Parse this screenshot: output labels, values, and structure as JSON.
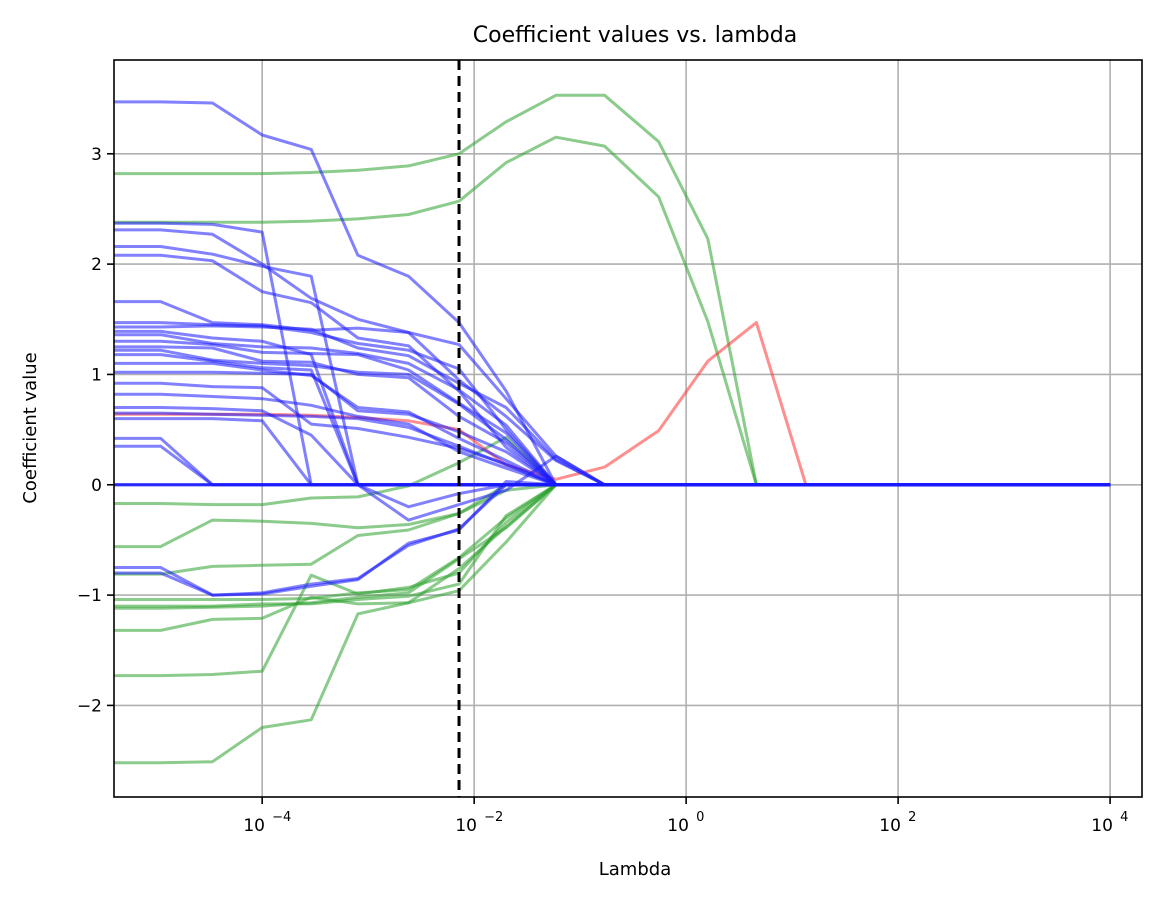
{
  "chart_data": {
    "type": "line",
    "title": "Coefficient values vs. lambda",
    "xlabel": "Lambda",
    "ylabel": "Coefficient value",
    "x_scale": "log",
    "xlim": [
      4e-06,
      20000
    ],
    "ylim": [
      -2.83,
      3.85
    ],
    "grid": true,
    "x_ticks": [
      {
        "value": 0.0001,
        "label": "10",
        "exp": "−4"
      },
      {
        "value": 0.01,
        "label": "10",
        "exp": "−2"
      },
      {
        "value": 1,
        "label": "10",
        "exp": "0"
      },
      {
        "value": 100,
        "label": "10",
        "exp": "2"
      },
      {
        "value": 10000,
        "label": "10",
        "exp": "4"
      }
    ],
    "y_ticks": [
      {
        "value": -2,
        "label": "−2"
      },
      {
        "value": -1,
        "label": "−1"
      },
      {
        "value": 0,
        "label": "0"
      },
      {
        "value": 1,
        "label": "1"
      },
      {
        "value": 2,
        "label": "2"
      },
      {
        "value": 3,
        "label": "3"
      }
    ],
    "vline": {
      "x": 0.0072,
      "style": "dashed",
      "color": "#000000"
    },
    "x": [
      4e-06,
      1.1e-05,
      3.4e-05,
      0.0001,
      0.00029,
      0.0008,
      0.0024,
      0.0072,
      0.02,
      0.059,
      0.17,
      0.55,
      1.6,
      4.6,
      13.5,
      40,
      120,
      350,
      1000,
      3000,
      10000
    ],
    "colors": {
      "green": "#2ca02c",
      "red": "#ff3333",
      "blue": "#1a1aff"
    },
    "series": [
      {
        "color": "green",
        "values": [
          2.82,
          2.82,
          2.82,
          2.82,
          2.83,
          2.85,
          2.89,
          3.0,
          3.29,
          3.53,
          3.53,
          3.11,
          2.23,
          0,
          0,
          0,
          0,
          0,
          0,
          0,
          0
        ]
      },
      {
        "color": "green",
        "values": [
          2.38,
          2.38,
          2.38,
          2.38,
          2.39,
          2.41,
          2.45,
          2.57,
          2.92,
          3.15,
          3.07,
          2.61,
          1.48,
          0,
          0,
          0,
          0,
          0,
          0,
          0,
          0
        ]
      },
      {
        "color": "green",
        "values": [
          -0.17,
          -0.17,
          -0.18,
          -0.18,
          -0.12,
          -0.11,
          -0.01,
          0.2,
          0.43,
          0,
          0,
          0,
          0,
          0,
          0,
          0,
          0,
          0,
          0,
          0,
          0
        ]
      },
      {
        "color": "green",
        "values": [
          -0.56,
          -0.56,
          -0.32,
          -0.33,
          -0.35,
          -0.39,
          -0.36,
          -0.26,
          -0.05,
          0,
          0,
          0,
          0,
          0,
          0,
          0,
          0,
          0,
          0,
          0,
          0
        ]
      },
      {
        "color": "green",
        "values": [
          -0.81,
          -0.81,
          -0.74,
          -0.73,
          -0.72,
          -0.46,
          -0.41,
          -0.26,
          0,
          0,
          0,
          0,
          0,
          0,
          0,
          0,
          0,
          0,
          0,
          0,
          0
        ]
      },
      {
        "color": "green",
        "values": [
          -1.04,
          -1.04,
          -1.04,
          -1.04,
          -1.03,
          -0.98,
          -0.95,
          -0.66,
          -0.3,
          0,
          0,
          0,
          0,
          0,
          0,
          0,
          0,
          0,
          0,
          0,
          0
        ]
      },
      {
        "color": "green",
        "values": [
          -1.12,
          -1.12,
          -1.11,
          -1.1,
          -1.07,
          -1.02,
          -0.98,
          -0.67,
          -0.39,
          0,
          0,
          0,
          0,
          0,
          0,
          0,
          0,
          0,
          0,
          0,
          0
        ]
      },
      {
        "color": "green",
        "values": [
          -1.1,
          -1.1,
          -1.1,
          -1.08,
          -1.08,
          -1.04,
          -1.01,
          -0.9,
          -0.28,
          0,
          0,
          0,
          0,
          0,
          0,
          0,
          0,
          0,
          0,
          0,
          0
        ]
      },
      {
        "color": "green",
        "values": [
          -1.32,
          -1.32,
          -1.22,
          -1.21,
          -1.02,
          -1.08,
          -1.07,
          -0.96,
          -0.52,
          0,
          0,
          0,
          0,
          0,
          0,
          0,
          0,
          0,
          0,
          0,
          0
        ]
      },
      {
        "color": "green",
        "values": [
          -1.73,
          -1.73,
          -1.72,
          -1.69,
          -0.82,
          -0.99,
          -0.93,
          -0.8,
          -0.34,
          0,
          0,
          0,
          0,
          0,
          0,
          0,
          0,
          0,
          0,
          0,
          0
        ]
      },
      {
        "color": "green",
        "values": [
          -2.52,
          -2.52,
          -2.51,
          -2.2,
          -2.13,
          -1.17,
          -1.07,
          -0.76,
          -0.38,
          0,
          0,
          0,
          0,
          0,
          0,
          0,
          0,
          0,
          0,
          0,
          0
        ]
      },
      {
        "color": "red",
        "values": [
          0.64,
          0.64,
          0.64,
          0.64,
          0.63,
          0.61,
          0.58,
          0.5,
          0.18,
          0.05,
          0.16,
          0.49,
          1.12,
          1.47,
          0,
          0,
          0,
          0,
          0,
          0,
          0
        ]
      },
      {
        "color": "blue",
        "values": [
          3.47,
          3.47,
          3.46,
          3.17,
          3.04,
          2.08,
          1.89,
          1.47,
          0.85,
          0,
          0,
          0,
          0,
          0,
          0,
          0,
          0,
          0,
          0,
          0,
          0
        ]
      },
      {
        "color": "blue",
        "values": [
          2.37,
          2.37,
          2.36,
          2.29,
          0,
          0,
          0,
          0,
          0,
          0,
          0,
          0,
          0,
          0,
          0,
          0,
          0,
          0,
          0,
          0,
          0
        ]
      },
      {
        "color": "blue",
        "values": [
          2.31,
          2.31,
          2.27,
          2.0,
          1.69,
          1.5,
          1.38,
          0.95,
          0.62,
          0.22,
          0,
          0,
          0,
          0,
          0,
          0,
          0,
          0,
          0,
          0,
          0
        ]
      },
      {
        "color": "blue",
        "values": [
          2.16,
          2.16,
          2.09,
          1.98,
          1.89,
          0,
          0,
          0,
          0,
          0,
          0,
          0,
          0,
          0,
          0,
          0,
          0,
          0,
          0,
          0,
          0
        ]
      },
      {
        "color": "blue",
        "values": [
          2.08,
          2.08,
          2.03,
          1.75,
          1.65,
          1.33,
          1.26,
          0.85,
          0.34,
          0,
          0,
          0,
          0,
          0,
          0,
          0,
          0,
          0,
          0,
          0,
          0
        ]
      },
      {
        "color": "blue",
        "values": [
          1.66,
          1.66,
          1.47,
          1.45,
          1.4,
          1.42,
          1.38,
          1.27,
          0.78,
          0.26,
          0,
          0,
          0,
          0,
          0,
          0,
          0,
          0,
          0,
          0,
          0
        ]
      },
      {
        "color": "blue",
        "values": [
          1.47,
          1.47,
          1.45,
          1.44,
          1.38,
          1.28,
          1.22,
          1.05,
          0.5,
          0,
          0,
          0,
          0,
          0,
          0,
          0,
          0,
          0,
          0,
          0,
          0
        ]
      },
      {
        "color": "blue",
        "values": [
          1.43,
          1.43,
          1.44,
          1.43,
          1.41,
          1.24,
          1.17,
          0.92,
          0.7,
          0.23,
          0,
          0,
          0,
          0,
          0,
          0,
          0,
          0,
          0,
          0,
          0
        ]
      },
      {
        "color": "blue",
        "values": [
          1.39,
          1.39,
          1.33,
          1.3,
          1.18,
          0,
          0,
          0,
          0,
          0,
          0,
          0,
          0,
          0,
          0,
          0,
          0,
          0,
          0,
          0,
          0
        ]
      },
      {
        "color": "blue",
        "values": [
          1.36,
          1.36,
          1.28,
          1.25,
          1.24,
          1.19,
          1.1,
          0.86,
          0.54,
          0,
          0,
          0,
          0,
          0,
          0,
          0,
          0,
          0,
          0,
          0,
          0
        ]
      },
      {
        "color": "blue",
        "values": [
          1.3,
          1.3,
          1.27,
          1.2,
          1.19,
          1.18,
          1.04,
          0.74,
          0.47,
          0,
          0,
          0,
          0,
          0,
          0,
          0,
          0,
          0,
          0,
          0,
          0
        ]
      },
      {
        "color": "blue",
        "values": [
          1.25,
          1.25,
          1.24,
          1.12,
          1.11,
          1.0,
          0.97,
          0.62,
          0.38,
          0,
          0,
          0,
          0,
          0,
          0,
          0,
          0,
          0,
          0,
          0,
          0
        ]
      },
      {
        "color": "blue",
        "values": [
          1.22,
          1.22,
          1.13,
          1.1,
          1.08,
          1.02,
          1.0,
          0.73,
          0.41,
          0,
          0,
          0,
          0,
          0,
          0,
          0,
          0,
          0,
          0,
          0,
          0
        ]
      },
      {
        "color": "blue",
        "values": [
          1.18,
          1.18,
          1.12,
          1.06,
          1.04,
          0,
          0,
          0,
          0,
          0,
          0,
          0,
          0,
          0,
          0,
          0,
          0,
          0,
          0,
          0,
          0
        ]
      },
      {
        "color": "blue",
        "values": [
          1.1,
          1.1,
          1.1,
          1.04,
          0.99,
          0.7,
          0.66,
          0.42,
          0.22,
          0,
          0,
          0,
          0,
          0,
          0,
          0,
          0,
          0,
          0,
          0,
          0
        ]
      },
      {
        "color": "blue",
        "values": [
          1.02,
          1.02,
          1.02,
          1.01,
          1.0,
          0.67,
          0.64,
          0.48,
          0.3,
          0,
          0,
          0,
          0,
          0,
          0,
          0,
          0,
          0,
          0,
          0,
          0
        ]
      },
      {
        "color": "blue",
        "values": [
          0.92,
          0.92,
          0.89,
          0.88,
          0.55,
          0.51,
          0.43,
          0.33,
          0.19,
          0,
          0,
          0,
          0,
          0,
          0,
          0,
          0,
          0,
          0,
          0,
          0
        ]
      },
      {
        "color": "blue",
        "values": [
          0.82,
          0.82,
          0.8,
          0.78,
          0.72,
          0.62,
          0.55,
          0.3,
          0.15,
          0,
          0,
          0,
          0,
          0,
          0,
          0,
          0,
          0,
          0,
          0,
          0
        ]
      },
      {
        "color": "blue",
        "values": [
          0.7,
          0.7,
          0.69,
          0.67,
          0.45,
          0,
          0,
          0,
          0,
          0,
          0,
          0,
          0,
          0,
          0,
          0,
          0,
          0,
          0,
          0,
          0
        ]
      },
      {
        "color": "blue",
        "values": [
          0.65,
          0.65,
          0.64,
          0.63,
          0.62,
          0.6,
          0.52,
          0.35,
          0.18,
          0,
          0,
          0,
          0,
          0,
          0,
          0,
          0,
          0,
          0,
          0,
          0
        ]
      },
      {
        "color": "blue",
        "values": [
          0.6,
          0.6,
          0.6,
          0.58,
          0,
          0,
          0,
          0,
          0,
          0,
          0,
          0,
          0,
          0,
          0,
          0,
          0,
          0,
          0,
          0,
          0
        ]
      },
      {
        "color": "blue",
        "values": [
          0.42,
          0.42,
          0,
          0,
          0,
          0,
          0,
          0,
          0,
          0,
          0,
          0,
          0,
          0,
          0,
          0,
          0,
          0,
          0,
          0,
          0
        ]
      },
      {
        "color": "blue",
        "values": [
          0.35,
          0.35,
          0,
          0,
          0,
          0,
          0,
          0,
          0,
          0,
          0,
          0,
          0,
          0,
          0,
          0,
          0,
          0,
          0,
          0,
          0
        ]
      },
      {
        "color": "blue",
        "values": [
          0,
          0,
          0,
          0,
          0,
          0,
          0,
          0,
          0,
          0,
          0,
          0,
          0,
          0,
          0,
          0,
          0,
          0,
          0,
          0,
          0
        ]
      },
      {
        "color": "blue",
        "values": [
          -0.75,
          -0.75,
          -1.0,
          -0.99,
          -0.92,
          -0.86,
          -0.53,
          -0.41,
          0.03,
          0,
          0,
          0,
          0,
          0,
          0,
          0,
          0,
          0,
          0,
          0,
          0
        ]
      },
      {
        "color": "blue",
        "values": [
          -0.8,
          -0.8,
          -1.0,
          -0.98,
          -0.9,
          -0.85,
          -0.55,
          -0.4,
          0,
          0,
          0,
          0,
          0,
          0,
          0,
          0,
          0,
          0,
          0,
          0,
          0
        ]
      },
      {
        "color": "blue",
        "values": [
          0,
          0,
          0,
          0,
          0,
          0,
          -0.32,
          -0.18,
          -0.05,
          0.26,
          0,
          0,
          0,
          0,
          0,
          0,
          0,
          0,
          0,
          0,
          0
        ]
      },
      {
        "color": "blue",
        "values": [
          0,
          0,
          0,
          0,
          0,
          0,
          -0.2,
          -0.08,
          0,
          0,
          0,
          0,
          0,
          0,
          0,
          0,
          0,
          0,
          0,
          0,
          0
        ]
      }
    ]
  }
}
